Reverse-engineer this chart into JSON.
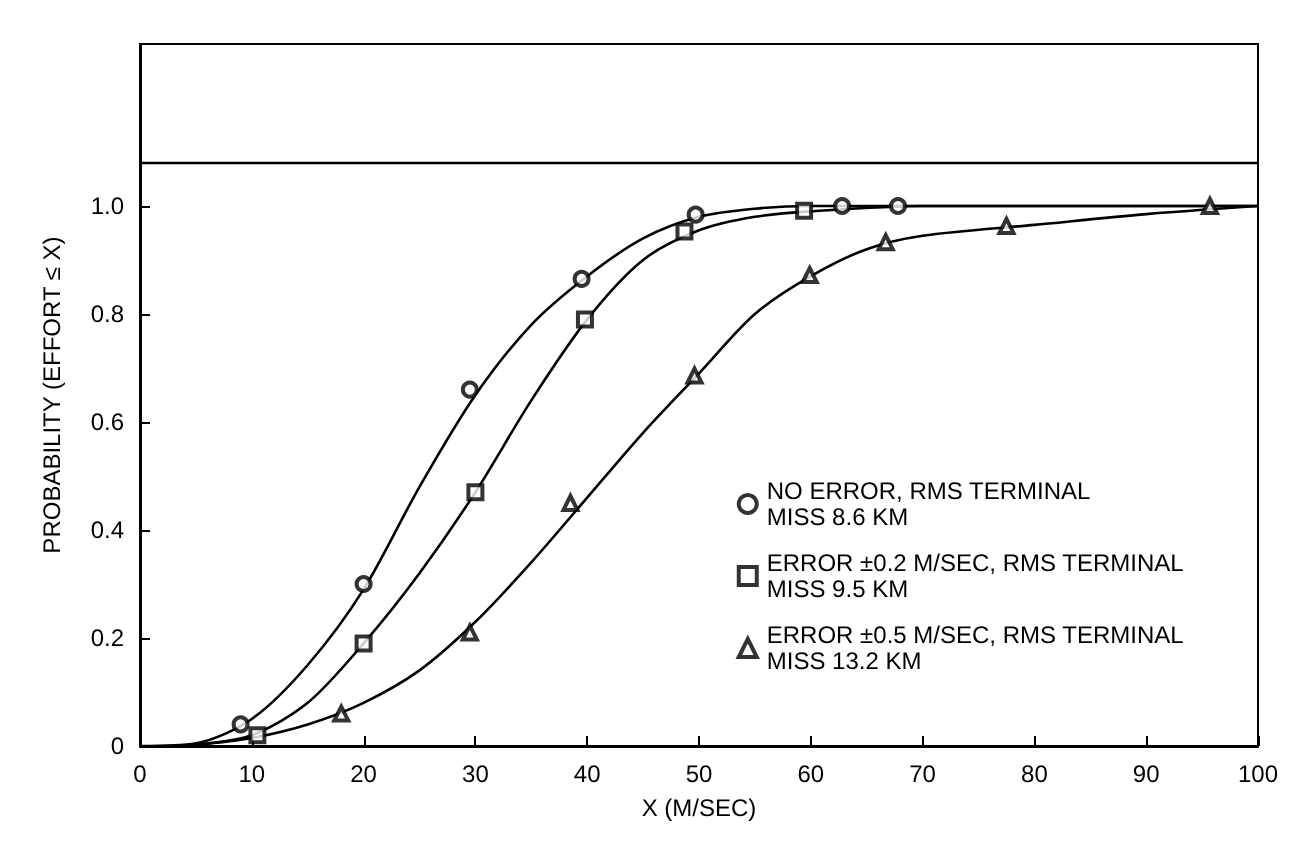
{
  "chart_data": {
    "type": "scatter",
    "xlabel": "X (M/SEC)",
    "ylabel": "PROBABILITY (EFFORT ≤ X)",
    "xlim": [
      0,
      100
    ],
    "xticks": [
      0,
      10,
      20,
      30,
      40,
      50,
      60,
      70,
      80,
      90,
      100
    ],
    "ylim": [
      0,
      1.3
    ],
    "yticks": [
      0,
      0.2,
      0.4,
      0.6,
      0.8,
      {
        "value": 1,
        "label": "1.0"
      }
    ],
    "grid": false,
    "legend": "bottom right",
    "ref_lines": [
      {
        "axis": "y",
        "value": 1.08,
        "color": "#000000"
      }
    ],
    "series": [
      {
        "name": "NO ERROR, RMS TERMINAL\nMISS 8.6 KM",
        "color": "#000000",
        "marker": "circle",
        "x": [
          9,
          20,
          29.5,
          39.5,
          49.7,
          62.8,
          67.8
        ],
        "values": [
          0.04,
          0.3,
          0.66,
          0.865,
          0.984,
          1.0,
          1.0
        ]
      },
      {
        "name": "ERROR ±0.2 M/SEC, RMS TERMINAL\nMISS 9.5 KM",
        "color": "#000000",
        "marker": "square",
        "x": [
          10.5,
          20,
          30,
          39.8,
          48.7,
          59.4
        ],
        "values": [
          0.02,
          0.19,
          0.47,
          0.79,
          0.953,
          0.991
        ]
      },
      {
        "name": "ERROR ±0.5 M/SEC, RMS TERMINAL\nMISS 13.2 KM",
        "color": "#000000",
        "marker": "triangle",
        "x": [
          18,
          29.5,
          38.5,
          49.6,
          59.9,
          66.7,
          77.5,
          95.7
        ],
        "values": [
          0.06,
          0.21,
          0.45,
          0.686,
          0.872,
          0.933,
          0.963,
          1.0
        ]
      },
      {
        "type": "line",
        "color": "#000000",
        "marker": "none",
        "x": [
          0,
          5,
          10,
          15,
          20,
          25,
          30,
          35,
          40,
          45,
          50,
          55,
          60,
          100
        ],
        "values": [
          0,
          0.005,
          0.05,
          0.15,
          0.29,
          0.48,
          0.65,
          0.78,
          0.87,
          0.94,
          0.98,
          0.995,
          1.0,
          1.0
        ]
      },
      {
        "type": "line",
        "color": "#000000",
        "marker": "none",
        "x": [
          3,
          5,
          10,
          15,
          20,
          25,
          30,
          35,
          40,
          45,
          50,
          55,
          60,
          70,
          100
        ],
        "values": [
          0,
          0.002,
          0.02,
          0.08,
          0.19,
          0.32,
          0.47,
          0.64,
          0.79,
          0.9,
          0.955,
          0.98,
          0.99,
          1.0,
          1.0
        ]
      },
      {
        "type": "line",
        "color": "#000000",
        "marker": "none",
        "x": [
          5,
          10,
          15,
          20,
          25,
          30,
          35,
          40,
          45,
          50,
          55,
          60,
          65,
          70,
          80,
          90,
          100
        ],
        "values": [
          0.002,
          0.015,
          0.04,
          0.08,
          0.14,
          0.23,
          0.34,
          0.46,
          0.58,
          0.69,
          0.8,
          0.87,
          0.92,
          0.945,
          0.965,
          0.985,
          1.0
        ]
      }
    ]
  }
}
